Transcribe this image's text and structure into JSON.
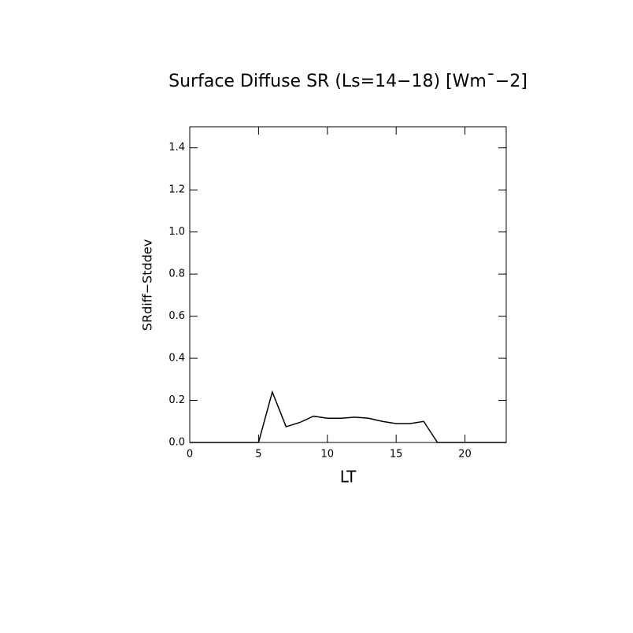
{
  "chart_data": {
    "type": "line",
    "title": "Surface Diffuse SR (Ls=14−18) [Wm¯−2]",
    "x_label": "LT",
    "y_label": "SRdiff−Stddev",
    "x": [
      0,
      1,
      2,
      3,
      4,
      5,
      6,
      7,
      8,
      9,
      10,
      11,
      12,
      13,
      14,
      15,
      16,
      17,
      18,
      19,
      20,
      21,
      22,
      23
    ],
    "series": [
      {
        "color": "#000000",
        "values": [
          0,
          0,
          0,
          0,
          0,
          0,
          0.24,
          0.075,
          0.095,
          0.125,
          0.115,
          0.115,
          0.12,
          0.115,
          0.1,
          0.09,
          0.09,
          0.1,
          0,
          0,
          0,
          0,
          0,
          0
        ]
      }
    ],
    "xlim": [
      0,
      23
    ],
    "xticks": [
      0,
      5,
      10,
      15,
      20
    ],
    "ylim": [
      0,
      1.5
    ],
    "yticks": [
      {
        "value": 0,
        "label": "0.0"
      },
      {
        "value": 0.2,
        "label": "0.2"
      },
      {
        "value": 0.4,
        "label": "0.4"
      },
      {
        "value": 0.6,
        "label": "0.6"
      },
      {
        "value": 0.8,
        "label": "0.8"
      },
      {
        "value": 1.0,
        "label": "1.0"
      },
      {
        "value": 1.2,
        "label": "1.2"
      },
      {
        "value": 1.4,
        "label": "1.4"
      }
    ]
  }
}
